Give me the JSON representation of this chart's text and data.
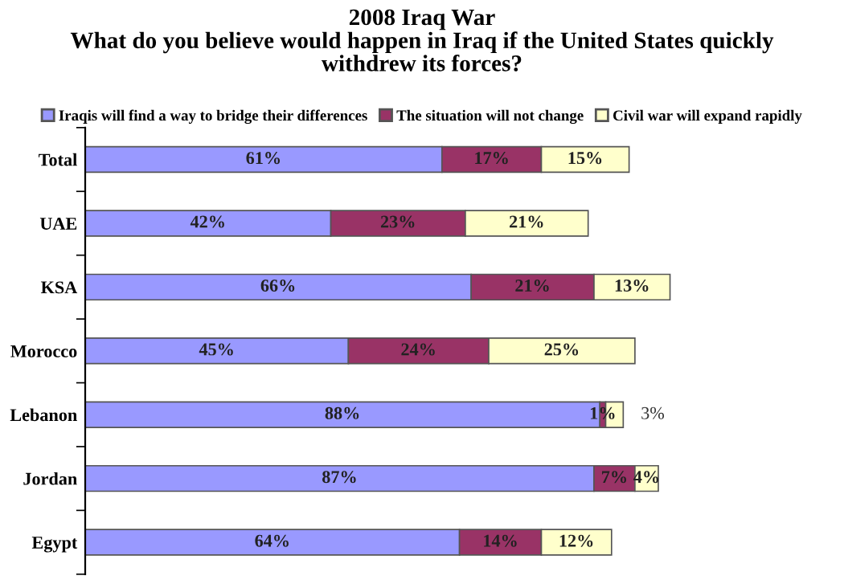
{
  "chart_data": {
    "type": "bar",
    "orientation": "horizontal",
    "stacked": true,
    "legend": "top",
    "grid": false,
    "title": "2008 Iraq War\nWhat do you believe would happen in Iraq if the United States quickly\nwithdrew its forces?",
    "categories": [
      "Total",
      "UAE",
      "KSA",
      "Morocco",
      "Lebanon",
      "Jordan",
      "Egypt"
    ],
    "series": [
      {
        "name": "Iraqis will find a way to bridge their differences",
        "color": "#9999ff",
        "values": [
          61,
          42,
          66,
          45,
          88,
          87,
          64
        ],
        "value_labels": [
          "61%",
          "42%",
          "66%",
          "45%",
          "88%",
          "87%",
          "64%"
        ]
      },
      {
        "name": "The situation will not change",
        "color": "#993366",
        "values": [
          17,
          23,
          21,
          24,
          1,
          7,
          14
        ],
        "value_labels": [
          "17%",
          "23%",
          "21%",
          "24%",
          "1%",
          "7%",
          "14%"
        ]
      },
      {
        "name": "Civil war will expand rapidly",
        "color": "#ffffcc",
        "values": [
          15,
          21,
          13,
          25,
          3,
          4,
          12
        ],
        "value_labels": [
          "15%",
          "21%",
          "13%",
          "25%",
          "3%",
          "4%",
          "12%"
        ]
      }
    ]
  }
}
